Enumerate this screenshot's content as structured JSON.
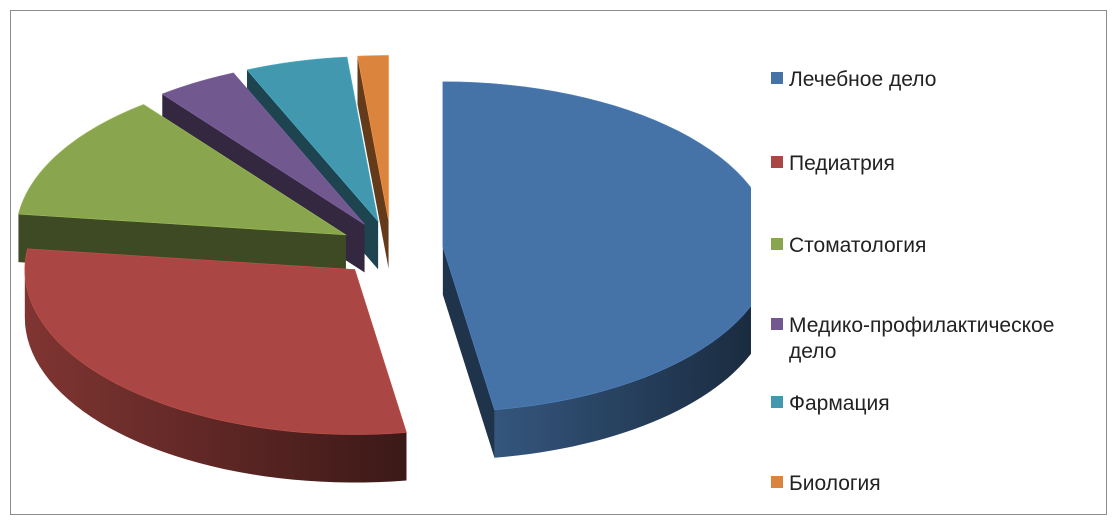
{
  "chart_data": {
    "type": "pie",
    "title": "",
    "categories": [
      "Лечебное дело",
      "Педиатрия",
      "Стоматология",
      "Медико-профилактическое дело",
      "Фармация",
      "Биология"
    ],
    "values": [
      47.5,
      29.5,
      12.5,
      4,
      5,
      1.5
    ],
    "colors": [
      "#4572a7",
      "#aa4643",
      "#89a54e",
      "#71588f",
      "#4198af",
      "#db843d"
    ],
    "exploded": true,
    "three_d": true,
    "legend_position": "right"
  }
}
